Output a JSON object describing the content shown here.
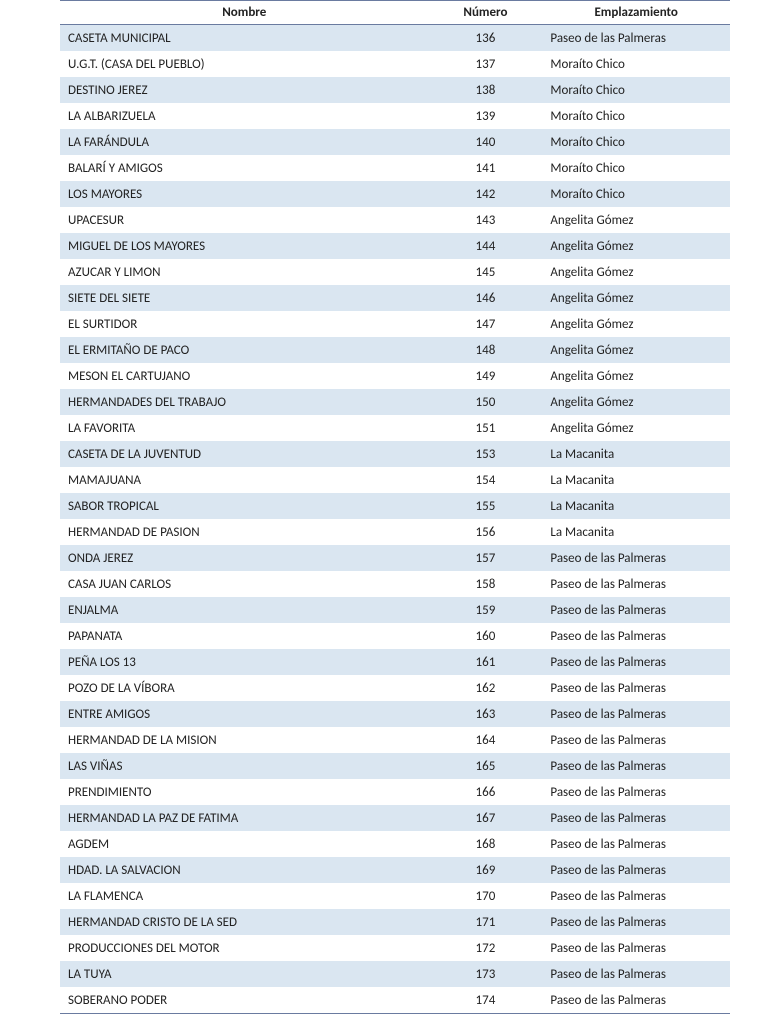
{
  "table": {
    "type": "table",
    "background_color": "#ffffff",
    "stripe_color": "#dae6f1",
    "border_color": "#6a7ba0",
    "text_color": "#222222",
    "header_font_weight": 700,
    "font_size_pt": 10,
    "columns": [
      {
        "key": "nombre",
        "label": "Nombre",
        "width_pct": 55,
        "align": "left"
      },
      {
        "key": "numero",
        "label": "Número",
        "width_pct": 17,
        "align": "center"
      },
      {
        "key": "emp",
        "label": "Emplazamiento",
        "width_pct": 28,
        "align": "left"
      }
    ],
    "rows": [
      {
        "nombre": "CASETA MUNICIPAL",
        "numero": "136",
        "emp": "Paseo de las Palmeras"
      },
      {
        "nombre": "U.G.T. (CASA DEL PUEBLO)",
        "numero": "137",
        "emp": "Moraíto Chico"
      },
      {
        "nombre": "DESTINO JEREZ",
        "numero": "138",
        "emp": "Moraíto Chico"
      },
      {
        "nombre": "LA ALBARIZUELA",
        "numero": "139",
        "emp": "Moraíto Chico"
      },
      {
        "nombre": "LA FARÁNDULA",
        "numero": "140",
        "emp": "Moraíto Chico"
      },
      {
        "nombre": "BALARÍ Y AMIGOS",
        "numero": "141",
        "emp": "Moraíto Chico"
      },
      {
        "nombre": "LOS MAYORES",
        "numero": "142",
        "emp": "Moraíto Chico"
      },
      {
        "nombre": "UPACESUR",
        "numero": "143",
        "emp": "Angelita Gómez"
      },
      {
        "nombre": "MIGUEL DE LOS MAYORES",
        "numero": "144",
        "emp": "Angelita Gómez"
      },
      {
        "nombre": "AZUCAR Y LIMON",
        "numero": "145",
        "emp": "Angelita Gómez"
      },
      {
        "nombre": "SIETE DEL SIETE",
        "numero": "146",
        "emp": "Angelita Gómez"
      },
      {
        "nombre": "EL SURTIDOR",
        "numero": "147",
        "emp": "Angelita Gómez"
      },
      {
        "nombre": "EL ERMITAÑO DE PACO",
        "numero": "148",
        "emp": "Angelita Gómez"
      },
      {
        "nombre": "MESON EL CARTUJANO",
        "numero": "149",
        "emp": "Angelita Gómez"
      },
      {
        "nombre": "HERMANDADES DEL TRABAJO",
        "numero": "150",
        "emp": "Angelita Gómez"
      },
      {
        "nombre": "LA FAVORITA",
        "numero": "151",
        "emp": "Angelita Gómez"
      },
      {
        "nombre": "CASETA DE LA JUVENTUD",
        "numero": "153",
        "emp": "La Macanita"
      },
      {
        "nombre": "MAMAJUANA",
        "numero": "154",
        "emp": "La Macanita"
      },
      {
        "nombre": "SABOR TROPICAL",
        "numero": "155",
        "emp": "La Macanita"
      },
      {
        "nombre": "HERMANDAD DE PASION",
        "numero": "156",
        "emp": "La Macanita"
      },
      {
        "nombre": "ONDA JEREZ",
        "numero": "157",
        "emp": "Paseo de las Palmeras"
      },
      {
        "nombre": "CASA JUAN CARLOS",
        "numero": "158",
        "emp": "Paseo de las Palmeras"
      },
      {
        "nombre": "ENJALMA",
        "numero": "159",
        "emp": "Paseo de las Palmeras"
      },
      {
        "nombre": "PAPANATA",
        "numero": "160",
        "emp": "Paseo de las Palmeras"
      },
      {
        "nombre": "PEÑA LOS 13",
        "numero": "161",
        "emp": "Paseo de las Palmeras"
      },
      {
        "nombre": "POZO DE LA VÍBORA",
        "numero": "162",
        "emp": "Paseo de las Palmeras"
      },
      {
        "nombre": "ENTRE AMIGOS",
        "numero": "163",
        "emp": "Paseo de las Palmeras"
      },
      {
        "nombre": "HERMANDAD DE LA MISION",
        "numero": "164",
        "emp": "Paseo de las Palmeras"
      },
      {
        "nombre": "LAS VIÑAS",
        "numero": "165",
        "emp": "Paseo de las Palmeras"
      },
      {
        "nombre": "PRENDIMIENTO",
        "numero": "166",
        "emp": "Paseo de las Palmeras"
      },
      {
        "nombre": "HERMANDAD LA PAZ DE FATIMA",
        "numero": "167",
        "emp": "Paseo de las Palmeras"
      },
      {
        "nombre": "AGDEM",
        "numero": "168",
        "emp": "Paseo de las Palmeras"
      },
      {
        "nombre": "HDAD. LA SALVACION",
        "numero": "169",
        "emp": "Paseo de las Palmeras"
      },
      {
        "nombre": "LA FLAMENCA",
        "numero": "170",
        "emp": "Paseo de las Palmeras"
      },
      {
        "nombre": "HERMANDAD CRISTO DE LA SED",
        "numero": "171",
        "emp": "Paseo de las Palmeras"
      },
      {
        "nombre": "PRODUCCIONES DEL MOTOR",
        "numero": "172",
        "emp": "Paseo de las Palmeras"
      },
      {
        "nombre": "LA TUYA",
        "numero": "173",
        "emp": "Paseo de las Palmeras"
      },
      {
        "nombre": "SOBERANO PODER",
        "numero": "174",
        "emp": "Paseo de las Palmeras"
      }
    ]
  }
}
